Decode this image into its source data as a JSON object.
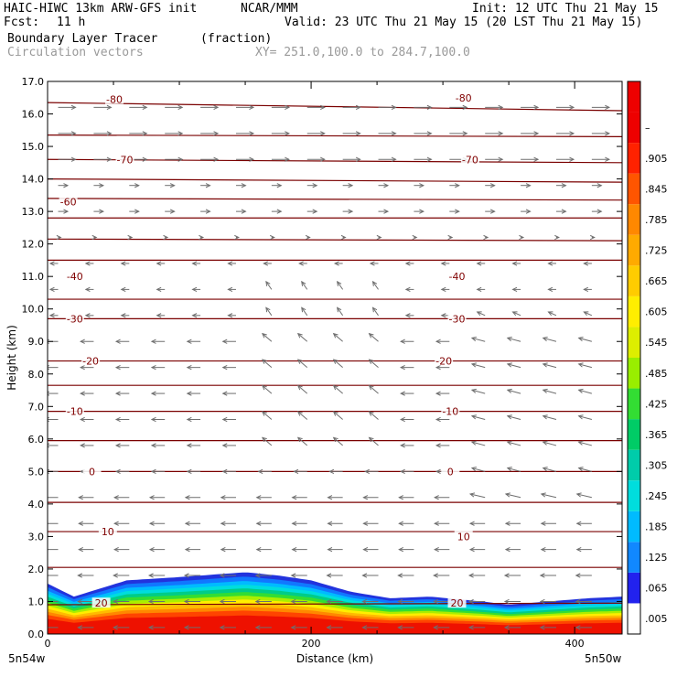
{
  "header": {
    "model": "HAIC-HIWC 13km ARW-GFS init",
    "org": "NCAR/MMM",
    "init": "Init: 12 UTC Thu 21 May 15",
    "fcst_label": "Fcst:",
    "fcst_value": "11 h",
    "valid": "Valid: 23 UTC Thu 21 May 15 (20 LST Thu 21 May 15)",
    "field": "Boundary Layer Tracer",
    "units": "(fraction)",
    "vectors": "Circulation vectors",
    "xy_range": "XY= 251.0,100.0 to 284.7,100.0"
  },
  "chart_data": {
    "type": "heatmap",
    "title": "Boundary Layer Tracer",
    "xlabel": "Distance (km)",
    "ylabel": "Height (km)",
    "xlim": [
      0,
      436
    ],
    "ylim": [
      0,
      17
    ],
    "x_ticks": [
      0,
      200,
      400
    ],
    "y_ticks": [
      "0.0",
      "1.0",
      "2.0",
      "3.0",
      "4.0",
      "5.0",
      "6.0",
      "7.0",
      "8.0",
      "9.0",
      "10.0",
      "11.0",
      "12.0",
      "13.0",
      "14.0",
      "15.0",
      "16.0",
      "17.0"
    ],
    "x_endpoints": [
      "5n54w",
      "5n50w"
    ],
    "tracer_top": {
      "x_km": [
        0,
        20,
        60,
        100,
        150,
        175,
        200,
        230,
        260,
        290,
        330,
        350,
        380,
        410,
        436
      ],
      "h_km": [
        1.55,
        1.15,
        1.65,
        1.75,
        1.9,
        1.8,
        1.65,
        1.3,
        1.1,
        1.15,
        1.0,
        0.9,
        1.0,
        1.1,
        1.15
      ]
    },
    "colorbar": {
      "labels": [
        ".005",
        ".065",
        ".125",
        ".185",
        ".245",
        ".305",
        ".365",
        ".425",
        ".485",
        ".545",
        ".605",
        ".665",
        ".725",
        ".785",
        ".845",
        ".905",
        "–"
      ],
      "colors": [
        "#ffffff",
        "#2222ee",
        "#1188ff",
        "#00bbff",
        "#00dddd",
        "#00ccaa",
        "#00cc66",
        "#33dd33",
        "#99ee00",
        "#ddee00",
        "#ffee00",
        "#ffcc00",
        "#ffaa00",
        "#ff8800",
        "#ff5500",
        "#ff2200",
        "#ee0000",
        "#ee0000"
      ]
    },
    "temperature_contours": {
      "heights_km": [
        0.9,
        2.05,
        3.15,
        4.05,
        5.0,
        5.95,
        6.85,
        7.65,
        8.4,
        9.7,
        10.3,
        11.5,
        12.15,
        12.8,
        13.4,
        14.0,
        14.6,
        15.35,
        16.35
      ],
      "slope_km": [
        0.05,
        0.0,
        0.0,
        0.0,
        0.0,
        0.0,
        0.0,
        0.0,
        0.0,
        0.0,
        0.0,
        0.0,
        -0.05,
        0.0,
        -0.05,
        -0.1,
        -0.1,
        -0.05,
        -0.25
      ],
      "labels": [
        {
          "text": "20",
          "x_km": 40,
          "h_km": 0.95
        },
        {
          "text": "20",
          "x_km": 310,
          "h_km": 0.95
        },
        {
          "text": "10",
          "x_km": 45,
          "h_km": 3.15
        },
        {
          "text": "10",
          "x_km": 315,
          "h_km": 3.0
        },
        {
          "text": "0",
          "x_km": 33,
          "h_km": 5.0
        },
        {
          "text": "0",
          "x_km": 305,
          "h_km": 5.0
        },
        {
          "text": "-10",
          "x_km": 20,
          "h_km": 6.85
        },
        {
          "text": "-10",
          "x_km": 305,
          "h_km": 6.85
        },
        {
          "text": "-20",
          "x_km": 32,
          "h_km": 8.4
        },
        {
          "text": "-20",
          "x_km": 300,
          "h_km": 8.4
        },
        {
          "text": "-30",
          "x_km": 20,
          "h_km": 9.7
        },
        {
          "text": "-30",
          "x_km": 310,
          "h_km": 9.7
        },
        {
          "text": "-40",
          "x_km": 20,
          "h_km": 11.0
        },
        {
          "text": "-40",
          "x_km": 310,
          "h_km": 11.0
        },
        {
          "text": "-60",
          "x_km": 15,
          "h_km": 13.3
        },
        {
          "text": "-70",
          "x_km": 58,
          "h_km": 14.6
        },
        {
          "text": "-70",
          "x_km": 320,
          "h_km": 14.6
        },
        {
          "text": "-80",
          "x_km": 50,
          "h_km": 16.45
        },
        {
          "text": "-80",
          "x_km": 315,
          "h_km": 16.5
        }
      ]
    },
    "vectors": {
      "x_km_step": 27,
      "h_km_step": 0.8,
      "description": "eastward flow aloft, westward near surface and mid levels"
    }
  }
}
